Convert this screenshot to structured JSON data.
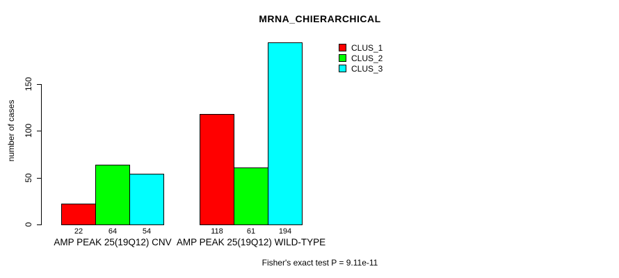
{
  "chart_data": {
    "type": "bar",
    "title": "MRNA_CHIERARCHICAL",
    "ylabel": "number of cases",
    "xlabel": "",
    "ylim": [
      0,
      150
    ],
    "yticks": [
      0,
      50,
      100,
      150
    ],
    "grid": false,
    "legend_position": "top-right",
    "categories": [
      "AMP PEAK 25(19Q12) CNV",
      "AMP PEAK 25(19Q12) WILD-TYPE"
    ],
    "series": [
      {
        "name": "CLUS_1",
        "color": "#ff0000",
        "values": [
          22,
          118
        ]
      },
      {
        "name": "CLUS_2",
        "color": "#00ff00",
        "values": [
          64,
          61
        ]
      },
      {
        "name": "CLUS_3",
        "color": "#00ffff",
        "values": [
          54,
          194
        ]
      }
    ],
    "bar_value_labels": [
      [
        22,
        64,
        54
      ],
      [
        118,
        61,
        194
      ]
    ],
    "annotation": "Fisher's exact test P = 9.11e-11",
    "colors": {
      "background": "#ffffff",
      "axis": "#000000",
      "text": "#000000"
    }
  }
}
